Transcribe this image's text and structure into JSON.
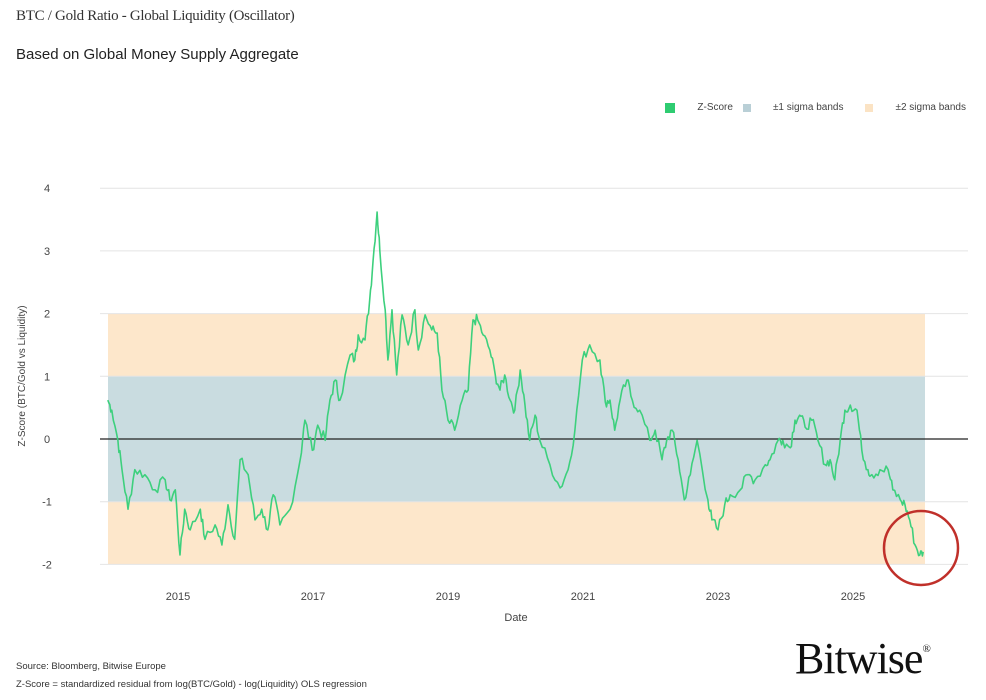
{
  "header": {
    "title": "BTC / Gold Ratio - Global Liquidity (Oscillator)",
    "subtitle": "Based on Global Money Supply Aggregate"
  },
  "legend": [
    {
      "label": "Z-Score",
      "color": "#2ecc71"
    },
    {
      "label": "±1 sigma bands",
      "color": "#b9cfd6"
    },
    {
      "label": "±2 sigma bands",
      "color": "#fbe3c4"
    }
  ],
  "footer": {
    "source": "Source: Bloomberg, Bitwise Europe",
    "note": "Z-Score = standardized residual from log(BTC/Gold) - log(Liquidity) OLS regression",
    "logo": "Bitwise"
  },
  "colors": {
    "line": "#3dd07d",
    "band1": "#c9dce0",
    "band2": "#fde7cb",
    "zero": "#222222",
    "highlight": "#c0302a"
  },
  "chart_data": {
    "type": "line",
    "title": "BTC / Gold Ratio - Global Liquidity (Oscillator)",
    "xlabel": "Date",
    "ylabel": "Z-Score (BTC/Gold vs Liquidity)",
    "xlim": [
      2013.9,
      2026.9
    ],
    "ylim": [
      -2,
      4
    ],
    "x_ticks": [
      "2015",
      "2017",
      "2019",
      "2021",
      "2023",
      "2025"
    ],
    "y_ticks": [
      "-2",
      "-1",
      "0",
      "1",
      "2",
      "3",
      "4"
    ],
    "grid": true,
    "legend_position": "top-right",
    "bands": [
      {
        "name": "±2 sigma bands",
        "range": [
          -2,
          2
        ]
      },
      {
        "name": "±1 sigma bands",
        "range": [
          -1,
          1
        ]
      }
    ],
    "annotation": "red circle highlighting latest reading near -1.85 (late 2025)",
    "series": [
      {
        "name": "Z-Score",
        "points": [
          [
            2013.96,
            0.62
          ],
          [
            2014.02,
            0.46
          ],
          [
            2014.11,
            -0.02
          ],
          [
            2014.17,
            -0.49
          ],
          [
            2014.26,
            -1.12
          ],
          [
            2014.36,
            -0.49
          ],
          [
            2014.51,
            -0.57
          ],
          [
            2014.66,
            -0.81
          ],
          [
            2014.81,
            -0.65
          ],
          [
            2014.88,
            -0.97
          ],
          [
            2014.96,
            -0.81
          ],
          [
            2015.03,
            -1.85
          ],
          [
            2015.1,
            -1.12
          ],
          [
            2015.18,
            -1.45
          ],
          [
            2015.33,
            -1.12
          ],
          [
            2015.4,
            -1.6
          ],
          [
            2015.55,
            -1.37
          ],
          [
            2015.65,
            -1.69
          ],
          [
            2015.74,
            -1.05
          ],
          [
            2015.84,
            -1.6
          ],
          [
            2015.92,
            -0.33
          ],
          [
            2016.04,
            -0.57
          ],
          [
            2016.14,
            -1.29
          ],
          [
            2016.24,
            -1.12
          ],
          [
            2016.33,
            -1.45
          ],
          [
            2016.41,
            -0.89
          ],
          [
            2016.51,
            -1.37
          ],
          [
            2016.66,
            -1.12
          ],
          [
            2016.81,
            -0.33
          ],
          [
            2016.88,
            0.3
          ],
          [
            2016.99,
            -0.18
          ],
          [
            2017.07,
            0.22
          ],
          [
            2017.18,
            -0.02
          ],
          [
            2017.25,
            0.62
          ],
          [
            2017.33,
            0.94
          ],
          [
            2017.4,
            0.62
          ],
          [
            2017.55,
            1.34
          ],
          [
            2017.62,
            1.26
          ],
          [
            2017.67,
            1.66
          ],
          [
            2017.77,
            1.58
          ],
          [
            2017.84,
            2.22
          ],
          [
            2017.89,
            2.85
          ],
          [
            2017.95,
            3.62
          ],
          [
            2017.99,
            3.01
          ],
          [
            2018.07,
            2.06
          ],
          [
            2018.11,
            1.26
          ],
          [
            2018.17,
            2.06
          ],
          [
            2018.24,
            1.02
          ],
          [
            2018.32,
            1.98
          ],
          [
            2018.41,
            1.5
          ],
          [
            2018.51,
            2.06
          ],
          [
            2018.56,
            1.42
          ],
          [
            2018.66,
            1.98
          ],
          [
            2018.76,
            1.74
          ],
          [
            2018.84,
            1.69
          ],
          [
            2018.91,
            0.78
          ],
          [
            2019.0,
            0.3
          ],
          [
            2019.1,
            0.14
          ],
          [
            2019.21,
            0.62
          ],
          [
            2019.3,
            0.78
          ],
          [
            2019.37,
            1.9
          ],
          [
            2019.44,
            1.9
          ],
          [
            2019.52,
            1.66
          ],
          [
            2019.62,
            1.42
          ],
          [
            2019.7,
            1.02
          ],
          [
            2019.77,
            0.78
          ],
          [
            2019.84,
            1.02
          ],
          [
            2019.92,
            0.62
          ],
          [
            2019.99,
            0.46
          ],
          [
            2020.07,
            1.1
          ],
          [
            2020.14,
            0.54
          ],
          [
            2020.21,
            -0.02
          ],
          [
            2020.29,
            0.38
          ],
          [
            2020.36,
            -0.02
          ],
          [
            2020.51,
            -0.41
          ],
          [
            2020.66,
            -0.78
          ],
          [
            2020.78,
            -0.49
          ],
          [
            2020.88,
            0.14
          ],
          [
            2020.99,
            1.26
          ],
          [
            2021.1,
            1.5
          ],
          [
            2021.25,
            1.26
          ],
          [
            2021.33,
            0.59
          ],
          [
            2021.4,
            0.62
          ],
          [
            2021.47,
            0.14
          ],
          [
            2021.55,
            0.62
          ],
          [
            2021.65,
            0.94
          ],
          [
            2021.73,
            0.62
          ],
          [
            2021.84,
            0.46
          ],
          [
            2021.99,
            -0.02
          ],
          [
            2022.07,
            0.14
          ],
          [
            2022.17,
            -0.33
          ],
          [
            2022.24,
            -0.02
          ],
          [
            2022.32,
            0.14
          ],
          [
            2022.41,
            -0.33
          ],
          [
            2022.5,
            -0.97
          ],
          [
            2022.59,
            -0.57
          ],
          [
            2022.69,
            -0.02
          ],
          [
            2022.85,
            -0.97
          ],
          [
            2022.91,
            -1.29
          ],
          [
            2023.0,
            -1.45
          ],
          [
            2023.1,
            -1.05
          ],
          [
            2023.18,
            -0.89
          ],
          [
            2023.33,
            -0.81
          ],
          [
            2023.44,
            -0.57
          ],
          [
            2023.55,
            -0.65
          ],
          [
            2023.7,
            -0.41
          ],
          [
            2023.77,
            -0.33
          ],
          [
            2023.89,
            -0.02
          ],
          [
            2023.96,
            -0.02
          ],
          [
            2024.07,
            -0.14
          ],
          [
            2024.14,
            0.3
          ],
          [
            2024.21,
            0.38
          ],
          [
            2024.29,
            0.19
          ],
          [
            2024.39,
            0.3
          ],
          [
            2024.48,
            -0.02
          ],
          [
            2024.59,
            -0.41
          ],
          [
            2024.66,
            -0.33
          ],
          [
            2024.73,
            -0.65
          ],
          [
            2024.81,
            -0.02
          ],
          [
            2024.88,
            0.46
          ],
          [
            2024.96,
            0.54
          ],
          [
            2025.06,
            0.46
          ],
          [
            2025.13,
            -0.18
          ],
          [
            2025.22,
            -0.49
          ],
          [
            2025.28,
            -0.57
          ],
          [
            2025.4,
            -0.49
          ],
          [
            2025.52,
            -0.49
          ],
          [
            2025.59,
            -0.81
          ],
          [
            2025.7,
            -0.97
          ],
          [
            2025.77,
            -1.05
          ],
          [
            2025.84,
            -1.29
          ],
          [
            2025.92,
            -1.69
          ],
          [
            2025.99,
            -1.85
          ],
          [
            2026.04,
            -1.8
          ]
        ]
      }
    ]
  }
}
